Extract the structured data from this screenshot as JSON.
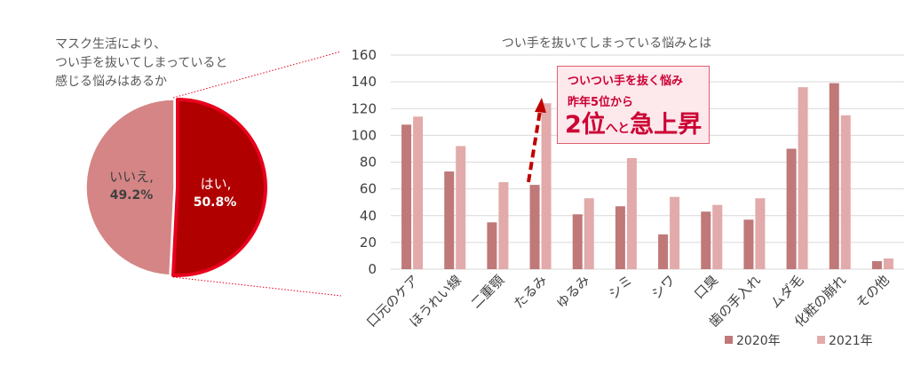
{
  "survey_question": {
    "lines": [
      "マスク生活により、",
      "つい手を抜いてしまっていると",
      "感じる悩みはあるか"
    ]
  },
  "pie": {
    "slices": [
      {
        "label": "はい,",
        "value_text": "50.8%",
        "value": 50.8,
        "color": "#b00000",
        "text_color": "#ffffff"
      },
      {
        "label": "いいえ,",
        "value_text": "49.2%",
        "value": 49.2,
        "color": "#d58585",
        "text_color": "#404040"
      }
    ],
    "highlight_color": "#e8001c"
  },
  "callout": {
    "line1": "ついつい手を抜く悩み",
    "line2": "昨年5位から",
    "big1": "2位",
    "small": "へと",
    "big2": "急上昇"
  },
  "chart_data": {
    "type": "bar",
    "title": "つい手を抜いてしまっている悩みとは",
    "categories": [
      "口元のケア",
      "ほうれい線",
      "二重顎",
      "たるみ",
      "ゆるみ",
      "シミ",
      "シワ",
      "口臭",
      "歯の手入れ",
      "ムダ毛",
      "化粧の崩れ",
      "その他"
    ],
    "series": [
      {
        "name": "2020年",
        "color": "#c07878",
        "values": [
          108,
          73,
          35,
          63,
          41,
          47,
          26,
          43,
          37,
          90,
          139,
          6
        ]
      },
      {
        "name": "2021年",
        "color": "#e2aaaa",
        "values": [
          114,
          92,
          65,
          124,
          53,
          83,
          54,
          48,
          53,
          136,
          115,
          8
        ]
      }
    ],
    "ylim": [
      0,
      160
    ],
    "yticks": [
      0,
      20,
      40,
      60,
      80,
      100,
      120,
      140,
      160
    ],
    "grid": true,
    "legend": "bottom-right",
    "xlabel": "",
    "ylabel": ""
  }
}
